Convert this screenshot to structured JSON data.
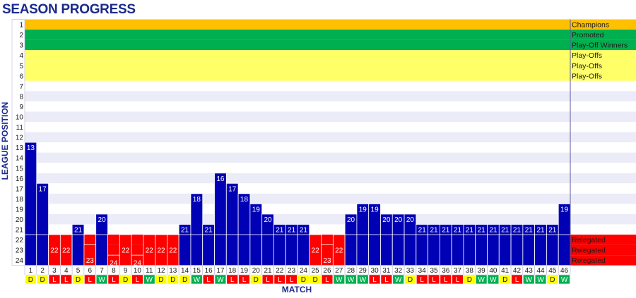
{
  "chart_data": {
    "type": "bar",
    "title": "SEASON PROGRESS",
    "xlabel": "MATCH",
    "ylabel": "LEAGUE POSITION",
    "ylim": [
      24,
      1
    ],
    "y_ticks": [
      1,
      2,
      3,
      4,
      5,
      6,
      7,
      8,
      9,
      10,
      11,
      12,
      13,
      14,
      15,
      16,
      17,
      18,
      19,
      20,
      21,
      22,
      23,
      24
    ],
    "categories": [
      1,
      2,
      3,
      4,
      5,
      6,
      7,
      8,
      9,
      10,
      11,
      12,
      13,
      14,
      15,
      16,
      17,
      18,
      19,
      20,
      21,
      22,
      23,
      24,
      25,
      26,
      27,
      28,
      29,
      30,
      31,
      32,
      33,
      34,
      35,
      36,
      37,
      38,
      39,
      40,
      41,
      42,
      43,
      44,
      45,
      46
    ],
    "values": [
      13,
      17,
      22,
      22,
      21,
      23,
      20,
      24,
      22,
      24,
      22,
      22,
      22,
      21,
      18,
      21,
      16,
      17,
      18,
      19,
      20,
      21,
      21,
      21,
      22,
      23,
      22,
      20,
      19,
      19,
      20,
      20,
      20,
      21,
      21,
      21,
      21,
      21,
      21,
      21,
      21,
      21,
      21,
      21,
      21,
      19
    ],
    "results": [
      "D",
      "D",
      "L",
      "L",
      "D",
      "L",
      "W",
      "L",
      "D",
      "L",
      "W",
      "D",
      "D",
      "D",
      "W",
      "L",
      "W",
      "L",
      "L",
      "D",
      "L",
      "L",
      "L",
      "D",
      "D",
      "L",
      "W",
      "W",
      "W",
      "L",
      "L",
      "W",
      "D",
      "L",
      "L",
      "L",
      "L",
      "D",
      "W",
      "W",
      "D",
      "L",
      "W",
      "W",
      "D",
      "W"
    ],
    "zones": [
      {
        "label": "Champions",
        "from": 1,
        "to": 1,
        "color": "#ffc000"
      },
      {
        "label": "Promoted",
        "from": 2,
        "to": 2,
        "color": "#00b050"
      },
      {
        "label": "Play-Off Winners",
        "from": 3,
        "to": 3,
        "color": "#00b050"
      },
      {
        "label": "Play-Offs",
        "from": 4,
        "to": 4,
        "color": "#ffff66"
      },
      {
        "label": "Play-Offs",
        "from": 5,
        "to": 5,
        "color": "#ffff66"
      },
      {
        "label": "Play-Offs",
        "from": 6,
        "to": 6,
        "color": "#ffff66"
      },
      {
        "label": "Relegated",
        "from": 22,
        "to": 22,
        "color": "#ff0000"
      },
      {
        "label": "Relegated",
        "from": 23,
        "to": 23,
        "color": "#ff0000"
      },
      {
        "label": "Relegated",
        "from": 24,
        "to": 24,
        "color": "#ff0000"
      }
    ],
    "colors": {
      "bar": "#0000b4",
      "bar_relegation": "#ff0000",
      "band_alt": "#ececf8",
      "result_W": "#00b050",
      "result_D": "#ffff00",
      "result_L": "#ff0000",
      "title": "#1a2a8c"
    }
  }
}
